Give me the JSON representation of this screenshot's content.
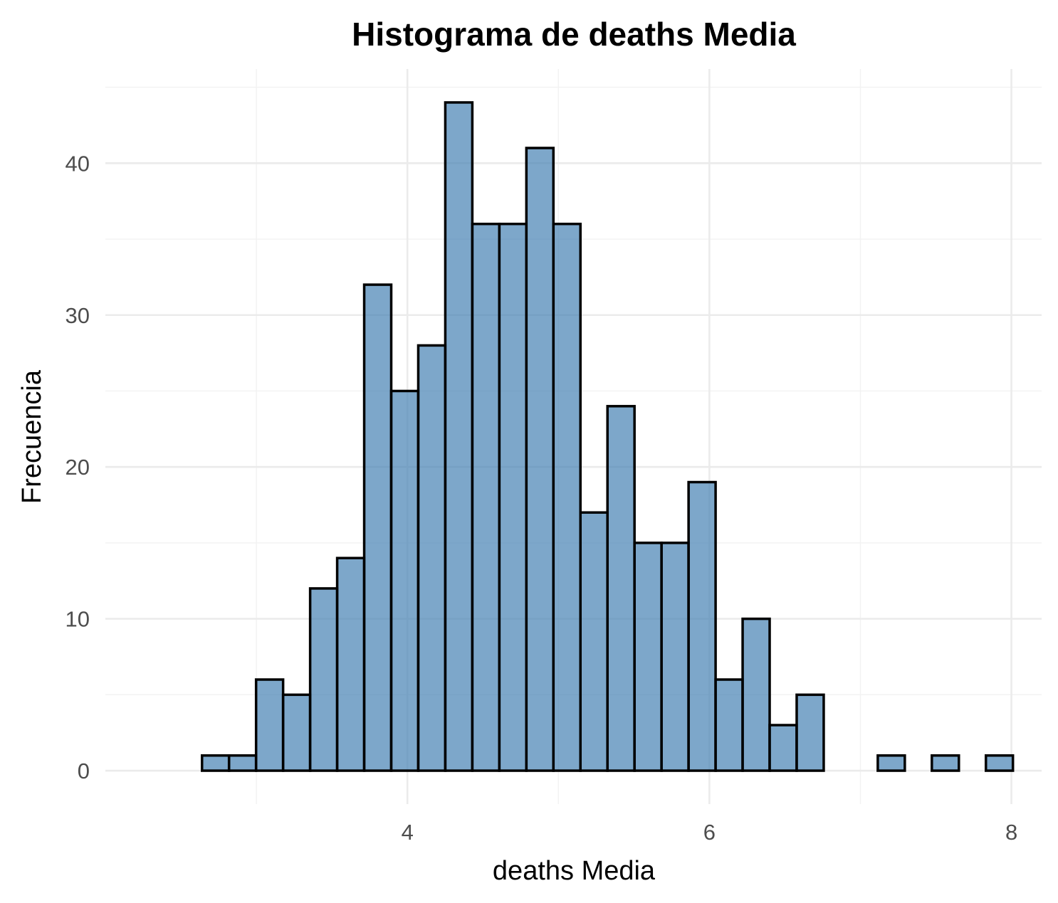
{
  "chart_data": {
    "type": "bar",
    "subtype": "histogram",
    "title": "Histograma de deaths Media",
    "xlabel": "deaths Media",
    "ylabel": "Frecuencia",
    "bin_start": 2.64,
    "bin_width": 0.179,
    "counts": [
      1,
      1,
      6,
      5,
      12,
      14,
      32,
      25,
      28,
      44,
      36,
      36,
      41,
      36,
      17,
      24,
      15,
      15,
      19,
      6,
      10,
      3,
      5,
      0,
      0,
      1,
      0,
      1,
      0,
      1
    ],
    "xlim": [
      2.0,
      8.2
    ],
    "ylim": [
      -2.2,
      46.2
    ],
    "x_ticks": [
      4,
      6,
      8
    ],
    "x_tick_labels": [
      "4",
      "6",
      "8"
    ],
    "x_minor_ticks": [
      3,
      5,
      7
    ],
    "y_ticks": [
      0,
      10,
      20,
      30,
      40
    ],
    "y_tick_labels": [
      "0",
      "10",
      "20",
      "30",
      "40"
    ],
    "y_minor_ticks": [
      5,
      15,
      25,
      35,
      45
    ],
    "grid": true,
    "legend": "none",
    "colors": {
      "bar_fill": "#4682B4",
      "bar_fill_opacity": 0.7,
      "bar_stroke": "#000000",
      "grid_major": "#ebebeb",
      "grid_minor": "#f2f2f2",
      "tick_text": "#4d4d4d"
    }
  }
}
